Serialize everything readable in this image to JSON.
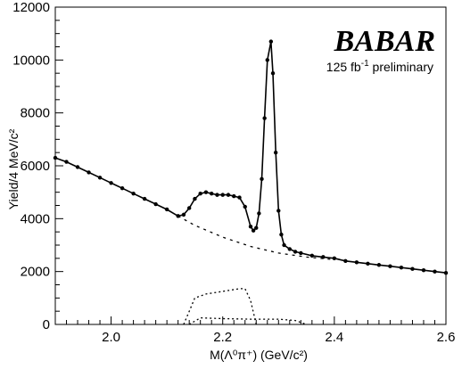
{
  "brand": {
    "logo_text": "BABAR",
    "luminosity": "125 fb",
    "luminosity_exp": "-1",
    "luminosity_suffix": " preliminary"
  },
  "chart_data": {
    "type": "line",
    "title": "",
    "xlabel": "M(Λ⁰π⁺) (GeV/c²)",
    "ylabel": "Yield/4 MeV/c²",
    "xlim": [
      1.9,
      2.6
    ],
    "ylim": [
      0,
      12000
    ],
    "x_ticks": [
      "2.0",
      "2.2",
      "2.4",
      "2.6"
    ],
    "x_tick_values": [
      2.0,
      2.2,
      2.4,
      2.6
    ],
    "y_ticks": [
      "0",
      "2000",
      "4000",
      "6000",
      "8000",
      "10000",
      "12000"
    ],
    "y_tick_values": [
      0,
      2000,
      4000,
      6000,
      8000,
      10000,
      12000
    ],
    "grid": false,
    "legend": "none",
    "series": [
      {
        "style": "data-points-with-solid-fit",
        "x": [
          1.9,
          1.92,
          1.94,
          1.96,
          1.98,
          2.0,
          2.02,
          2.04,
          2.06,
          2.08,
          2.1,
          2.12,
          2.13,
          2.14,
          2.15,
          2.16,
          2.17,
          2.18,
          2.19,
          2.2,
          2.21,
          2.22,
          2.23,
          2.24,
          2.25,
          2.255,
          2.26,
          2.265,
          2.27,
          2.275,
          2.28,
          2.2865,
          2.29,
          2.295,
          2.3,
          2.305,
          2.31,
          2.32,
          2.33,
          2.34,
          2.36,
          2.38,
          2.4,
          2.42,
          2.44,
          2.46,
          2.48,
          2.5,
          2.52,
          2.54,
          2.56,
          2.58,
          2.6
        ],
        "y": [
          6300,
          6150,
          5950,
          5750,
          5550,
          5350,
          5150,
          4950,
          4750,
          4550,
          4350,
          4100,
          4150,
          4400,
          4750,
          4950,
          5000,
          4950,
          4900,
          4900,
          4900,
          4850,
          4800,
          4450,
          3700,
          3550,
          3650,
          4200,
          5500,
          7800,
          10000,
          10700,
          9500,
          6500,
          4300,
          3400,
          3000,
          2850,
          2750,
          2700,
          2600,
          2550,
          2500,
          2400,
          2350,
          2300,
          2250,
          2200,
          2150,
          2100,
          2050,
          2000,
          1950
        ]
      },
      {
        "style": "dashed-background",
        "x": [
          2.12,
          2.15,
          2.2,
          2.25,
          2.3,
          2.35,
          2.4
        ],
        "y": [
          4100,
          3750,
          3300,
          2950,
          2700,
          2550,
          2450
        ]
      },
      {
        "style": "dotted-component",
        "x": [
          2.13,
          2.14,
          2.15,
          2.17,
          2.2,
          2.23,
          2.24,
          2.25,
          2.26
        ],
        "y": [
          0,
          500,
          1000,
          1150,
          1250,
          1350,
          1350,
          900,
          0
        ]
      },
      {
        "style": "dotted-component",
        "x": [
          2.14,
          2.16,
          2.2,
          2.25,
          2.3,
          2.33,
          2.35
        ],
        "y": [
          0,
          250,
          220,
          200,
          200,
          150,
          0
        ]
      }
    ]
  }
}
